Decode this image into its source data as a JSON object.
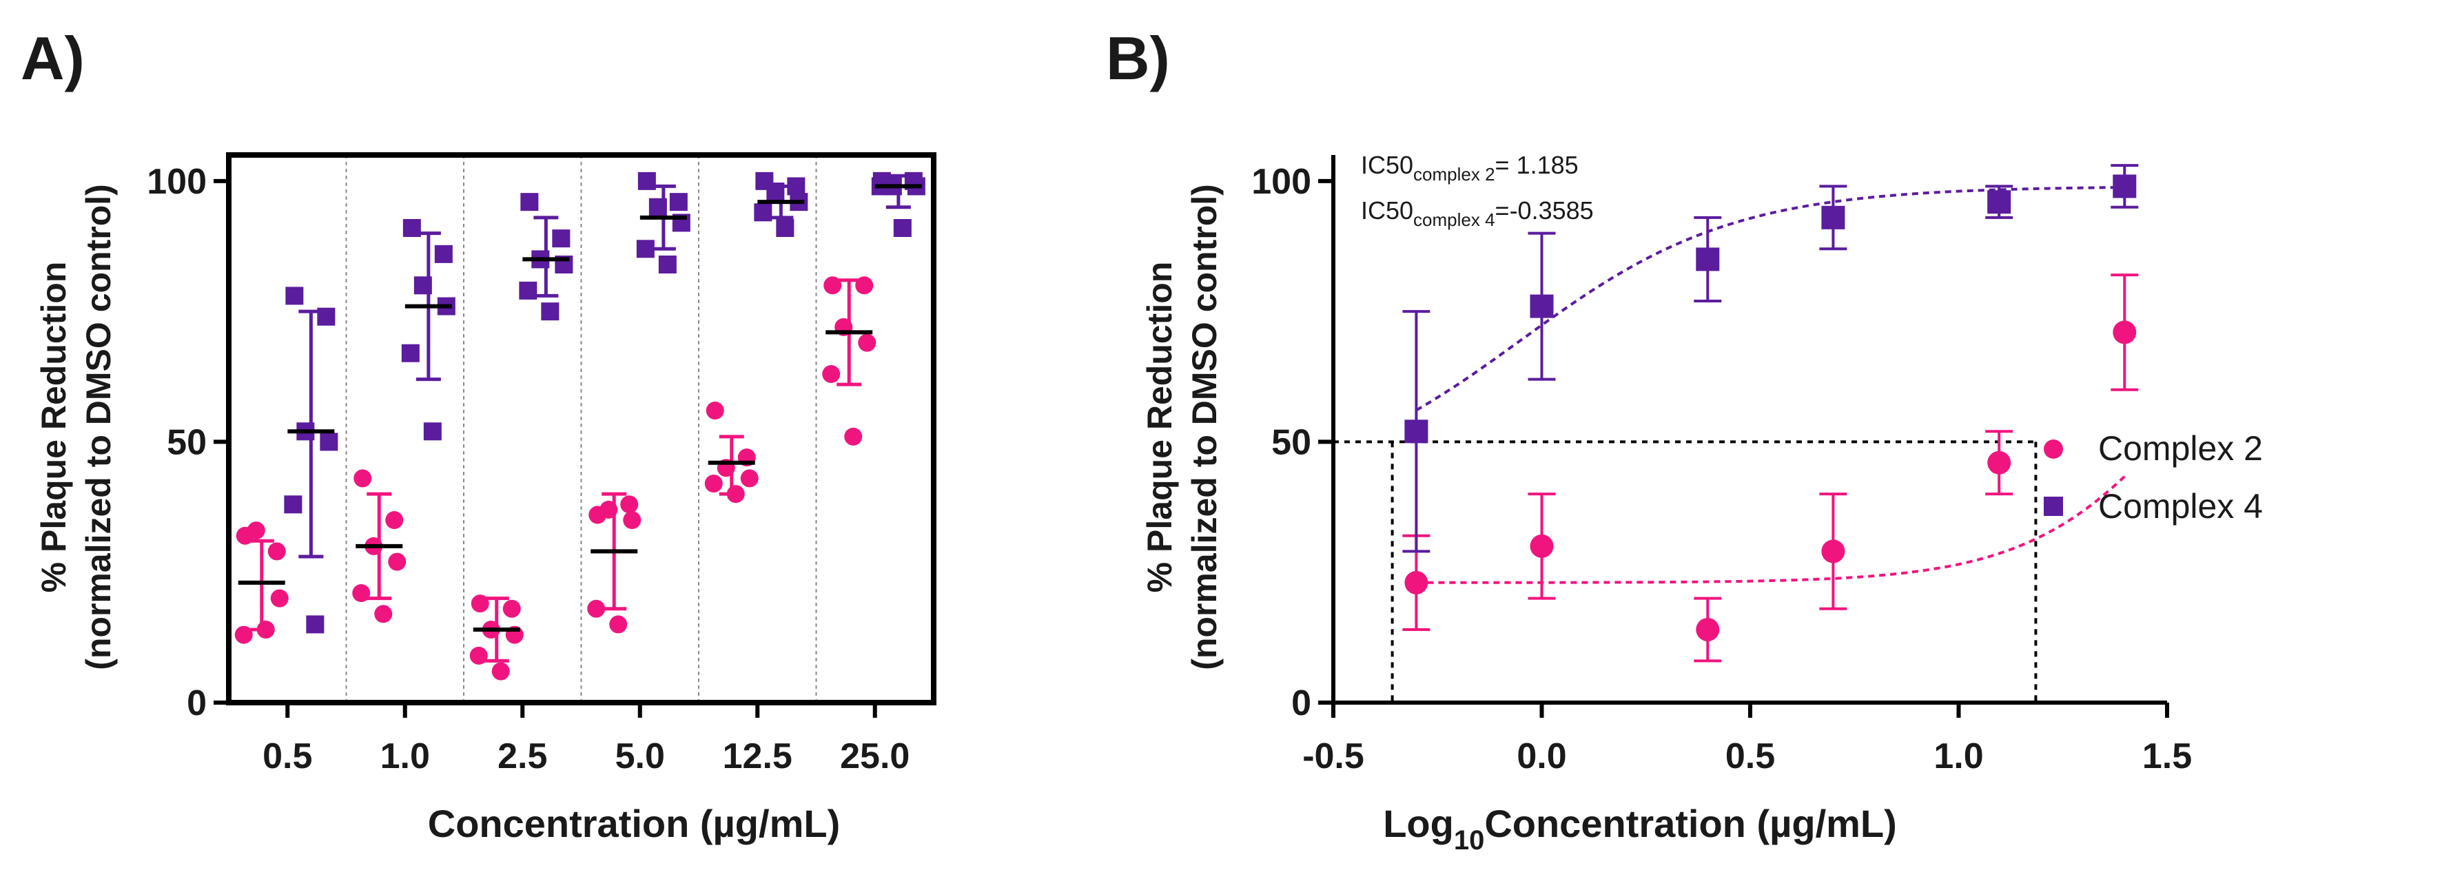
{
  "colors": {
    "complex2": "#f0157e",
    "complex4": "#5b1c9e",
    "axis": "#000000",
    "refline": "#000000",
    "divider": "#888888"
  },
  "chart_data": [
    {
      "panel": "A)",
      "type": "scatter",
      "xlabel": "Concentration (µg/mL)",
      "ylabel_lines": [
        "% Plaque Reduction",
        "(normalized to DMSO control)"
      ],
      "ylim": [
        0,
        105
      ],
      "yticks": [
        "0",
        "50",
        "100"
      ],
      "categories": [
        "0.5",
        "1.0",
        "2.5",
        "5.0",
        "12.5",
        "25.0"
      ],
      "series": [
        {
          "name": "Complex 2",
          "marker": "circle",
          "groups": [
            {
              "points": [
                32,
                29,
                33,
                20,
                13,
                14
              ],
              "mean": 23,
              "sd": [
                14,
                31
              ]
            },
            {
              "points": [
                43,
                35,
                30,
                27,
                21,
                17
              ],
              "mean": 30,
              "sd": [
                20,
                40
              ]
            },
            {
              "points": [
                19,
                18,
                14,
                13,
                9,
                6
              ],
              "mean": 14,
              "sd": [
                8,
                20
              ]
            },
            {
              "points": [
                36,
                38,
                37,
                35,
                18,
                15
              ],
              "mean": 29,
              "sd": [
                18,
                40
              ]
            },
            {
              "points": [
                56,
                47,
                45,
                43,
                42,
                40
              ],
              "mean": 46,
              "sd": [
                40,
                51
              ]
            },
            {
              "points": [
                80,
                80,
                72,
                69,
                63,
                51
              ],
              "mean": 71,
              "sd": [
                61,
                81
              ]
            }
          ]
        },
        {
          "name": "Complex 4",
          "marker": "square",
          "groups": [
            {
              "points": [
                78,
                74,
                52,
                50,
                38,
                15
              ],
              "mean": 52,
              "sd": [
                28,
                75
              ]
            },
            {
              "points": [
                91,
                86,
                80,
                76,
                67,
                52
              ],
              "mean": 76,
              "sd": [
                62,
                90
              ]
            },
            {
              "points": [
                96,
                89,
                85,
                84,
                79,
                75
              ],
              "mean": 85,
              "sd": [
                78,
                93
              ]
            },
            {
              "points": [
                100,
                96,
                95,
                92,
                87,
                84
              ],
              "mean": 93,
              "sd": [
                87,
                99
              ]
            },
            {
              "points": [
                100,
                99,
                98,
                96,
                94,
                91
              ],
              "mean": 96,
              "sd": [
                93,
                99
              ]
            },
            {
              "points": [
                100,
                100,
                99,
                99,
                99,
                91
              ],
              "mean": 99,
              "sd": [
                95,
                101
              ]
            }
          ]
        }
      ]
    },
    {
      "panel": "B)",
      "type": "scatter",
      "xlabel_base": "Log",
      "xlabel_sub": "10",
      "xlabel_rest": "Concentration (µg/mL)",
      "ylabel_lines": [
        "% Plaque Reduction",
        "(normalized to DMSO control)"
      ],
      "xlim": [
        -0.5,
        1.5
      ],
      "ylim": [
        0,
        105
      ],
      "xticks": [
        "-0.5",
        "0.0",
        "0.5",
        "1.0",
        "1.5"
      ],
      "yticks": [
        "0",
        "50",
        "100"
      ],
      "annotations": [
        {
          "main": "IC50",
          "sub": "complex 2",
          "rest": "= 1.185"
        },
        {
          "main": "IC50",
          "sub": "complex 4",
          "rest": "=-0.3585"
        }
      ],
      "reference_y": 50,
      "reference_x": [
        -0.3585,
        1.185
      ],
      "series": [
        {
          "name": "Complex 2",
          "marker": "circle",
          "x": [
            -0.301,
            0.0,
            0.398,
            0.699,
            1.097,
            1.398
          ],
          "y": [
            23,
            30,
            14,
            29,
            46,
            71
          ],
          "err": [
            9,
            10,
            6,
            11,
            6,
            11
          ],
          "fit": {
            "bottom": 23,
            "top": 100,
            "logic50": 1.6,
            "hill": 2.2
          }
        },
        {
          "name": "Complex 4",
          "marker": "square",
          "x": [
            -0.301,
            0.0,
            0.398,
            0.699,
            1.097,
            1.398
          ],
          "y": [
            52,
            76,
            85,
            93,
            96,
            99
          ],
          "err": [
            23,
            14,
            8,
            6,
            3,
            4
          ],
          "fit": {
            "bottom": 40,
            "top": 99,
            "logic50": -0.05,
            "hill": 1.7
          }
        }
      ]
    }
  ]
}
